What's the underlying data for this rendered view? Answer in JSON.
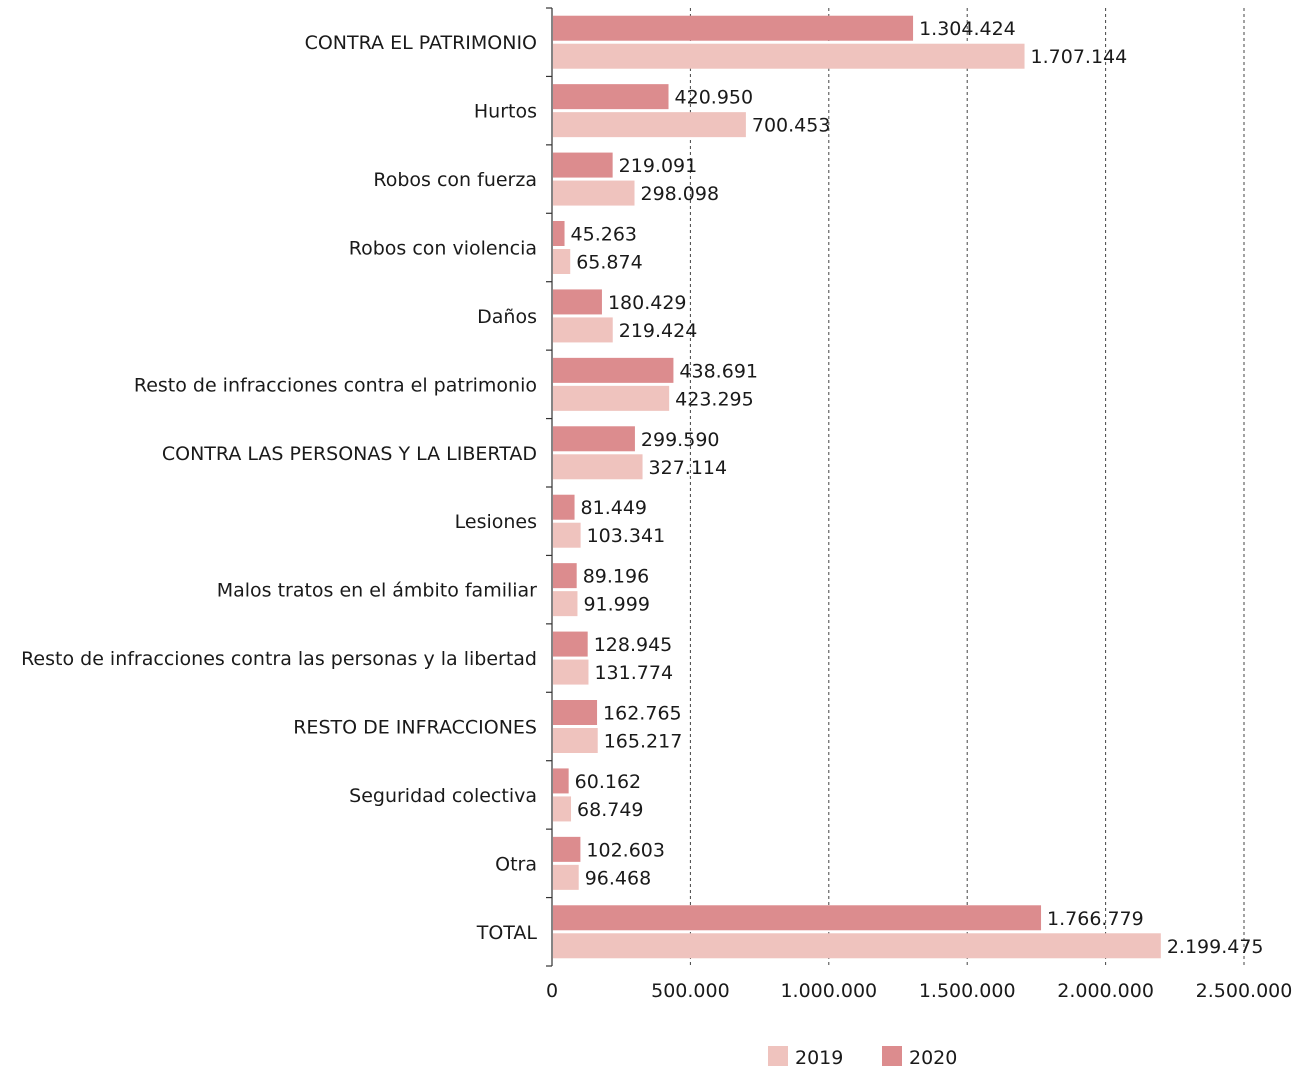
{
  "chart_data": {
    "type": "bar",
    "orientation": "horizontal",
    "categories": [
      "CONTRA EL PATRIMONIO",
      "Hurtos",
      "Robos con fuerza",
      "Robos con violencia",
      "Daños",
      "Resto de infracciones contra el patrimonio",
      "CONTRA LAS PERSONAS Y LA LIBERTAD",
      "Lesiones",
      "Malos tratos en el ámbito familiar",
      "Resto de infracciones contra las personas y la libertad",
      "RESTO DE INFRACCIONES",
      "Seguridad colectiva",
      "Otra",
      "TOTAL"
    ],
    "series": [
      {
        "name": "2020",
        "color": "#dc8c8e",
        "values": [
          1304424,
          420950,
          219091,
          45263,
          180429,
          438691,
          299590,
          81449,
          89196,
          128945,
          162765,
          60162,
          102603,
          1766779
        ],
        "labels": [
          "1.304.424",
          "420.950",
          "219.091",
          "45.263",
          "180.429",
          "438.691",
          "299.590",
          "81.449",
          "89.196",
          "128.945",
          "162.765",
          "60.162",
          "102.603",
          "1.766.779"
        ]
      },
      {
        "name": "2019",
        "color": "#efc3be",
        "values": [
          1707144,
          700453,
          298098,
          65874,
          219424,
          423295,
          327114,
          103341,
          91999,
          131774,
          165217,
          68749,
          96468,
          2199475
        ],
        "labels": [
          "1.707.144",
          "700.453",
          "298.098",
          "65.874",
          "219.424",
          "423.295",
          "327.114",
          "103.341",
          "91.999",
          "131.774",
          "165.217",
          "68.749",
          "96.468",
          "2.199.475"
        ]
      }
    ],
    "xlim": [
      0,
      2500000
    ],
    "xticks": [
      0,
      500000,
      1000000,
      1500000,
      2000000,
      2500000
    ],
    "xtick_labels": [
      "0",
      "500.000",
      "1.000.000",
      "1.500.000",
      "2.000.000",
      "2.500.000"
    ],
    "grid": "vertical dashed",
    "legend": {
      "position": "bottom-right",
      "entries": [
        {
          "name": "2019",
          "color": "#efc3be"
        },
        {
          "name": "2020",
          "color": "#dc8c8e"
        }
      ]
    }
  }
}
